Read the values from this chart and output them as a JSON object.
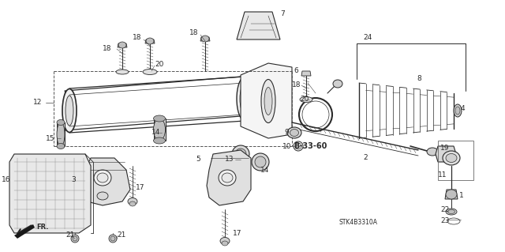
{
  "background_color": "#ffffff",
  "diagram_color": "#2a2a2a",
  "bold_label": "B-33-60",
  "part_code": "STK4B3310A",
  "figsize": [
    6.4,
    3.19
  ],
  "dpi": 100
}
